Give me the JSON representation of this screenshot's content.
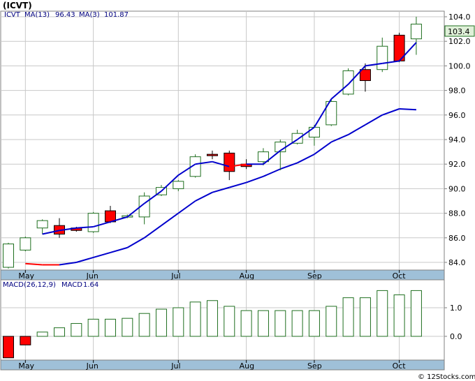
{
  "title": "(ICVT)",
  "watermark": "© 12Stocks.com",
  "colors": {
    "up_candle_border": "#1f6f1f",
    "down_candle": "#ff0000",
    "ma13": "#0000cc",
    "ma3": "#0000cc",
    "grid": "#c8c8c8",
    "axis_band": "#9fc0d8",
    "macd_bar": "#1f6f1f",
    "macd_neg": "#ff0000",
    "last_price_box": "#dff0d8"
  },
  "chart_data": [
    {
      "type": "candlestick",
      "legend": {
        "symbol": "ICVT",
        "ma13_label": "MA(13)",
        "ma13_value": "96.43",
        "ma3_label": "MA(3)",
        "ma3_value": "101.87"
      },
      "last_price": "103.4",
      "ylim": [
        83,
        105
      ],
      "yticks": [
        "84.0",
        "86.0",
        "88.0",
        "90.0",
        "92.0",
        "94.0",
        "96.0",
        "98.0",
        "100.0",
        "102.0",
        "104.0"
      ],
      "month_labels": [
        "May",
        "Jun",
        "Jul",
        "Aug",
        "Sep",
        "Oct"
      ],
      "grid": true,
      "candles": [
        {
          "o": 83.6,
          "h": 85.6,
          "l": 83.5,
          "c": 85.5
        },
        {
          "o": 85.0,
          "h": 86.1,
          "l": 84.9,
          "c": 86.0
        },
        {
          "o": 86.8,
          "h": 87.5,
          "l": 86.3,
          "c": 87.4
        },
        {
          "o": 87.0,
          "h": 87.6,
          "l": 86.0,
          "c": 86.3
        },
        {
          "o": 86.8,
          "h": 86.9,
          "l": 86.5,
          "c": 86.6
        },
        {
          "o": 86.5,
          "h": 88.1,
          "l": 86.4,
          "c": 88.0
        },
        {
          "o": 88.2,
          "h": 88.6,
          "l": 87.2,
          "c": 87.3
        },
        {
          "o": 87.7,
          "h": 87.9,
          "l": 87.6,
          "c": 87.8
        },
        {
          "o": 87.7,
          "h": 89.7,
          "l": 87.1,
          "c": 89.4
        },
        {
          "o": 89.5,
          "h": 90.3,
          "l": 89.4,
          "c": 90.1
        },
        {
          "o": 90.0,
          "h": 90.7,
          "l": 89.8,
          "c": 90.6
        },
        {
          "o": 91.0,
          "h": 92.8,
          "l": 90.9,
          "c": 92.6
        },
        {
          "o": 92.8,
          "h": 93.1,
          "l": 92.4,
          "c": 92.7
        },
        {
          "o": 92.9,
          "h": 93.1,
          "l": 90.7,
          "c": 91.4
        },
        {
          "o": 92.0,
          "h": 92.4,
          "l": 91.6,
          "c": 91.8
        },
        {
          "o": 92.2,
          "h": 93.3,
          "l": 91.9,
          "c": 93.0
        },
        {
          "o": 93.0,
          "h": 94.0,
          "l": 91.5,
          "c": 93.8
        },
        {
          "o": 93.7,
          "h": 94.8,
          "l": 93.6,
          "c": 94.5
        },
        {
          "o": 94.2,
          "h": 95.2,
          "l": 93.5,
          "c": 95.0
        },
        {
          "o": 95.2,
          "h": 97.3,
          "l": 95.1,
          "c": 97.1
        },
        {
          "o": 97.7,
          "h": 99.8,
          "l": 97.6,
          "c": 99.6
        },
        {
          "o": 99.7,
          "h": 100.2,
          "l": 97.9,
          "c": 98.8
        },
        {
          "o": 99.7,
          "h": 102.3,
          "l": 99.5,
          "c": 101.6
        },
        {
          "o": 102.5,
          "h": 102.7,
          "l": 100.3,
          "c": 100.4
        },
        {
          "o": 102.2,
          "h": 104.0,
          "l": 100.9,
          "c": 103.4
        }
      ],
      "ma3": [
        null,
        null,
        86.3,
        86.6,
        86.8,
        86.9,
        87.3,
        87.7,
        88.8,
        89.8,
        91.1,
        92.0,
        92.2,
        91.8,
        92.0,
        92.0,
        93.1,
        94.0,
        95.0,
        97.3,
        98.5,
        100.0,
        100.2,
        100.4,
        101.9
      ],
      "ma3_red_segments": [
        [
          13,
          14
        ]
      ],
      "ma13": [
        null,
        83.9,
        83.8,
        83.8,
        84.0,
        84.4,
        84.8,
        85.2,
        86.0,
        87.0,
        88.0,
        89.0,
        89.7,
        90.1,
        90.5,
        91.0,
        91.6,
        92.1,
        92.8,
        93.8,
        94.4,
        95.2,
        96.0,
        96.5,
        96.43
      ],
      "ma13_red_segments": [
        [
          1,
          3
        ]
      ]
    },
    {
      "type": "bar",
      "legend": {
        "label": "MACD(26,12,9)",
        "macd_label": "MACD",
        "macd_value": "1.64"
      },
      "ylim": [
        -0.8,
        1.8
      ],
      "yticks": [
        "0.0",
        "1.0"
      ],
      "month_labels": [
        "May",
        "Jun",
        "Jul",
        "Aug",
        "Sep",
        "Oct"
      ],
      "values": [
        -0.75,
        -0.3,
        0.15,
        0.3,
        0.45,
        0.6,
        0.6,
        0.63,
        0.8,
        0.95,
        1.0,
        1.2,
        1.25,
        1.05,
        0.9,
        0.9,
        0.9,
        0.9,
        0.9,
        1.05,
        1.35,
        1.35,
        1.6,
        1.45,
        1.6
      ]
    }
  ]
}
